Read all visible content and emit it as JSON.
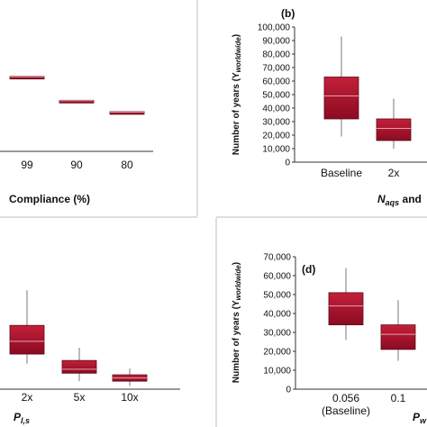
{
  "panels": {
    "a": {
      "label": "",
      "xlabel": "Compliance (%)"
    },
    "b": {
      "label": "(b)",
      "xlabel_main": "N",
      "xlabel_sub": "aqs",
      "xlabel_tail": " and"
    },
    "c": {
      "label": "",
      "xlabel_main": "P",
      "xlabel_sub": "l,s"
    },
    "d": {
      "label": "(d)",
      "xlabel_main": "P",
      "xlabel_sub": "w"
    }
  },
  "ylabel": {
    "main": "Number of years (Y",
    "sub": "worldwide",
    "tail": ")"
  },
  "colors": {
    "box_top": "#c4203a",
    "box_bottom": "#8a0b22",
    "box_border": "#5a0a18",
    "median": "#e8a0aa",
    "axis": "#333333",
    "divider": "#bdbdbd"
  },
  "chart_data": [
    {
      "panel": "a",
      "type": "box",
      "categories": [
        "99",
        "90",
        "80"
      ],
      "boxes": [
        {
          "q1": 0.557,
          "median": 0.56,
          "q3": 0.563,
          "whisker_low": 0.555,
          "whisker_high": 0.565
        },
        {
          "q1": 0.377,
          "median": 0.38,
          "q3": 0.383,
          "whisker_low": 0.375,
          "whisker_high": 0.385
        },
        {
          "q1": 0.292,
          "median": 0.295,
          "q3": 0.298,
          "whisker_low": 0.29,
          "whisker_high": 0.3
        }
      ],
      "ylim": [
        0,
        1
      ],
      "xlabel": "Compliance (%)"
    },
    {
      "panel": "b",
      "type": "box",
      "categories": [
        "Baseline",
        "2x"
      ],
      "boxes": [
        {
          "q1": 32000,
          "median": 49000,
          "q3": 63000,
          "whisker_low": 19000,
          "whisker_high": 93000
        },
        {
          "q1": 16000,
          "median": 25000,
          "q3": 32000,
          "whisker_low": 10000,
          "whisker_high": 47000
        }
      ],
      "yticks": [
        "0",
        "10,000",
        "20,000",
        "30,000",
        "40,000",
        "50,000",
        "60,000",
        "70,000",
        "80,000",
        "90,000",
        "100,000"
      ],
      "ylim": [
        0,
        100000
      ]
    },
    {
      "panel": "c",
      "type": "box",
      "categories": [
        "2x",
        "5x",
        "10x"
      ],
      "boxes": [
        {
          "q1": 0.22,
          "median": 0.3,
          "q3": 0.4,
          "whisker_low": 0.16,
          "whisker_high": 0.62
        },
        {
          "q1": 0.1,
          "median": 0.125,
          "q3": 0.18,
          "whisker_low": 0.05,
          "whisker_high": 0.26
        },
        {
          "q1": 0.05,
          "median": 0.07,
          "q3": 0.09,
          "whisker_low": 0.02,
          "whisker_high": 0.13
        }
      ],
      "ylim": [
        0,
        1
      ]
    },
    {
      "panel": "d",
      "type": "box",
      "categories": [
        "0.056",
        "0.1"
      ],
      "category_sublabels": [
        "(Baseline)",
        ""
      ],
      "boxes": [
        {
          "q1": 34000,
          "median": 44000,
          "q3": 51000,
          "whisker_low": 26000,
          "whisker_high": 64000
        },
        {
          "q1": 21000,
          "median": 29000,
          "q3": 34000,
          "whisker_low": 15000,
          "whisker_high": 47000
        }
      ],
      "yticks": [
        "0",
        "10,000",
        "20,000",
        "30,000",
        "40,000",
        "50,000",
        "60,000",
        "70,000"
      ],
      "ylim": [
        0,
        70000
      ]
    }
  ]
}
